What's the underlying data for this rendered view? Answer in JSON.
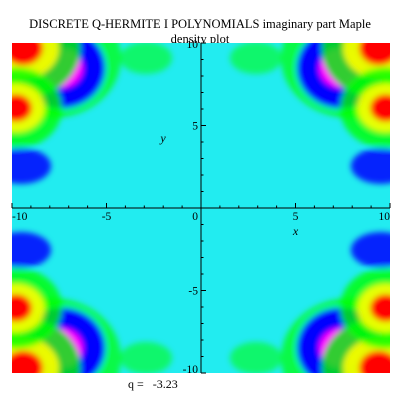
{
  "chart_data": {
    "type": "heatmap",
    "title_lines": [
      "DISCRETE Q-HERMITE  I  POLYNOMIALS imaginary part  Maple",
      "density plot"
    ],
    "xlabel": "x",
    "ylabel": "y",
    "xlim": [
      -10,
      10
    ],
    "ylim": [
      -10,
      10
    ],
    "x_ticks": [
      {
        "value": -10,
        "label": "-10"
      },
      {
        "value": -5,
        "label": "-5"
      },
      {
        "value": 0,
        "label": "0"
      },
      {
        "value": 5,
        "label": "5"
      },
      {
        "value": 10,
        "label": "10"
      }
    ],
    "y_ticks": [
      {
        "value": 10,
        "label": "10"
      },
      {
        "value": 5,
        "label": "5"
      },
      {
        "value": -5,
        "label": "-5"
      },
      {
        "value": -10,
        "label": "-10"
      }
    ],
    "colormap": [
      "#ff0000",
      "#ffff00",
      "#00ff00",
      "#00ffff",
      "#0000ff",
      "#ff00ff"
    ],
    "background_color": "#22ecf0",
    "grid": false
  },
  "caption": {
    "prefix": "q =",
    "value": "-3.23"
  }
}
